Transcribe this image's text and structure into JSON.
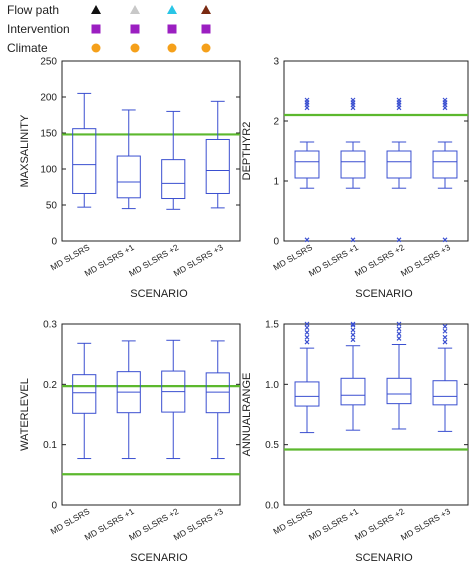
{
  "legend": {
    "rows": [
      {
        "label": "Flow path",
        "markers": [
          {
            "shape": "triangle",
            "color": "#111111"
          },
          {
            "shape": "triangle",
            "color": "#c8c8c8"
          },
          {
            "shape": "triangle",
            "color": "#29c5e6"
          },
          {
            "shape": "triangle",
            "color": "#7a2a12"
          }
        ]
      },
      {
        "label": "Intervention",
        "markers": [
          {
            "shape": "square",
            "color": "#9b1fc1"
          },
          {
            "shape": "square",
            "color": "#9b1fc1"
          },
          {
            "shape": "square",
            "color": "#9b1fc1"
          },
          {
            "shape": "square",
            "color": "#9b1fc1"
          }
        ]
      },
      {
        "label": "Climate",
        "markers": [
          {
            "shape": "circle",
            "color": "#f5a01a"
          },
          {
            "shape": "circle",
            "color": "#f5a01a"
          },
          {
            "shape": "circle",
            "color": "#f5a01a"
          },
          {
            "shape": "circle",
            "color": "#f5a01a"
          }
        ]
      }
    ]
  },
  "colors": {
    "box": "#3a4fd0",
    "threshold": "#5cb82e",
    "axis": "#222222"
  },
  "chart_data": [
    {
      "type": "box",
      "xlabel": "SCENARIO",
      "ylabel": "MAXSALINITY",
      "ylim": [
        0,
        250
      ],
      "yticks": [
        0,
        50,
        100,
        150,
        200,
        250
      ],
      "categories": [
        "MD SLSRS",
        "MD SLSRS +1",
        "MD SLSRS +2",
        "MD SLSRS +3"
      ],
      "boxes": [
        {
          "min": 47,
          "q1": 66,
          "median": 106,
          "q3": 156,
          "max": 205,
          "outliers": []
        },
        {
          "min": 45,
          "q1": 60,
          "median": 82,
          "q3": 118,
          "max": 182,
          "outliers": []
        },
        {
          "min": 44,
          "q1": 59,
          "median": 80,
          "q3": 113,
          "max": 180,
          "outliers": []
        },
        {
          "min": 46,
          "q1": 66,
          "median": 98,
          "q3": 141,
          "max": 194,
          "outliers": []
        }
      ],
      "threshold": 148
    },
    {
      "type": "box",
      "xlabel": "SCENARIO",
      "ylabel": "DEPTHYR2",
      "ylim": [
        0,
        3
      ],
      "yticks": [
        0,
        1,
        2,
        3
      ],
      "categories": [
        "MD SLSRS",
        "MD SLSRS +1",
        "MD SLSRS +2",
        "MD SLSRS +3"
      ],
      "boxes": [
        {
          "min": 0.88,
          "q1": 1.05,
          "median": 1.32,
          "q3": 1.5,
          "max": 1.65,
          "outliers": [
            0.02,
            2.22,
            2.27,
            2.31,
            2.35
          ]
        },
        {
          "min": 0.88,
          "q1": 1.05,
          "median": 1.32,
          "q3": 1.5,
          "max": 1.65,
          "outliers": [
            0.02,
            2.22,
            2.27,
            2.31,
            2.35
          ]
        },
        {
          "min": 0.88,
          "q1": 1.05,
          "median": 1.32,
          "q3": 1.5,
          "max": 1.65,
          "outliers": [
            0.02,
            2.22,
            2.27,
            2.31,
            2.35
          ]
        },
        {
          "min": 0.88,
          "q1": 1.05,
          "median": 1.32,
          "q3": 1.5,
          "max": 1.65,
          "outliers": [
            0.02,
            2.22,
            2.27,
            2.31,
            2.35
          ]
        }
      ],
      "threshold": 2.1
    },
    {
      "type": "box",
      "xlabel": "SCENARIO",
      "ylabel": "WATERLEVEL",
      "ylim": [
        0,
        0.3
      ],
      "yticks": [
        0,
        0.1,
        0.2,
        0.3
      ],
      "categories": [
        "MD SLSRS",
        "MD SLSRS +1",
        "MD SLSRS +2",
        "MD SLSRS +3"
      ],
      "boxes": [
        {
          "min": 0.077,
          "q1": 0.152,
          "median": 0.186,
          "q3": 0.216,
          "max": 0.268,
          "outliers": []
        },
        {
          "min": 0.077,
          "q1": 0.153,
          "median": 0.187,
          "q3": 0.221,
          "max": 0.272,
          "outliers": []
        },
        {
          "min": 0.077,
          "q1": 0.154,
          "median": 0.188,
          "q3": 0.222,
          "max": 0.273,
          "outliers": []
        },
        {
          "min": 0.077,
          "q1": 0.153,
          "median": 0.187,
          "q3": 0.219,
          "max": 0.272,
          "outliers": []
        }
      ],
      "thresholds": [
        0.197,
        0.051
      ]
    },
    {
      "type": "box",
      "xlabel": "SCENARIO",
      "ylabel": "ANNUALRANGE",
      "ylim": [
        0,
        1.5
      ],
      "yticks": [
        0,
        0.5,
        1.0,
        1.5
      ],
      "ytick_labels": [
        "0.0",
        "0.5",
        "1.0",
        "1.5"
      ],
      "categories": [
        "MD SLSRS",
        "MD SLSRS +1",
        "MD SLSRS +2",
        "MD SLSRS +3"
      ],
      "boxes": [
        {
          "min": 0.6,
          "q1": 0.82,
          "median": 0.9,
          "q3": 1.02,
          "max": 1.3,
          "outliers": [
            1.35,
            1.39,
            1.43,
            1.47,
            1.5
          ]
        },
        {
          "min": 0.62,
          "q1": 0.83,
          "median": 0.91,
          "q3": 1.05,
          "max": 1.32,
          "outliers": [
            1.37,
            1.41,
            1.45,
            1.49,
            1.5
          ]
        },
        {
          "min": 0.63,
          "q1": 0.84,
          "median": 0.92,
          "q3": 1.05,
          "max": 1.33,
          "outliers": [
            1.38,
            1.42,
            1.46,
            1.5
          ]
        },
        {
          "min": 0.61,
          "q1": 0.83,
          "median": 0.9,
          "q3": 1.03,
          "max": 1.3,
          "outliers": [
            1.35,
            1.39,
            1.44,
            1.48
          ]
        }
      ],
      "threshold": 0.46
    }
  ]
}
